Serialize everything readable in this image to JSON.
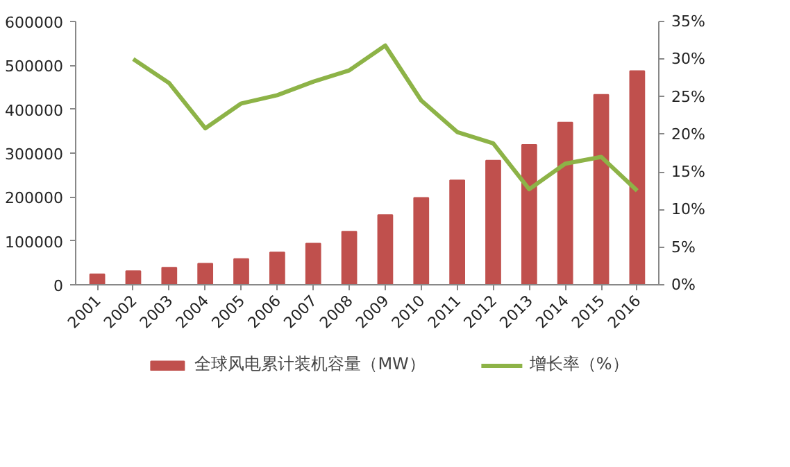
{
  "chart_data": {
    "type": "bar",
    "categories": [
      "2001",
      "2002",
      "2003",
      "2004",
      "2005",
      "2006",
      "2007",
      "2008",
      "2009",
      "2010",
      "2011",
      "2012",
      "2013",
      "2014",
      "2015",
      "2016"
    ],
    "series": [
      {
        "name": "全球风电累计装机容量（MW）",
        "color": "#c0504d",
        "values": [
          24000,
          31000,
          39000,
          48000,
          59000,
          74000,
          94000,
          121000,
          159000,
          198000,
          238000,
          283000,
          319000,
          370000,
          433000,
          487000
        ]
      },
      {
        "name": "增长率（%）",
        "type": "line",
        "axis": "y2",
        "color": "#8db347",
        "values": [
          null,
          30.0,
          26.8,
          20.8,
          24.1,
          25.2,
          27.0,
          28.5,
          31.8,
          24.5,
          20.3,
          18.8,
          12.7,
          16.1,
          17.0,
          12.5
        ]
      }
    ],
    "ylim": [
      0,
      600000
    ],
    "yticks": [
      0,
      100000,
      200000,
      300000,
      400000,
      500000,
      600000
    ],
    "y2lim": [
      0,
      35
    ],
    "y2ticks": [
      {
        "value": 0,
        "label": "0%"
      },
      {
        "value": 5,
        "label": "5%"
      },
      {
        "value": 10,
        "label": "10%"
      },
      {
        "value": 15,
        "label": "15%"
      },
      {
        "value": 20,
        "label": "20%"
      },
      {
        "value": 25,
        "label": "25%"
      },
      {
        "value": 30,
        "label": "30%"
      },
      {
        "value": 35,
        "label": "35%"
      }
    ],
    "legend": "bottom",
    "grid": false
  }
}
